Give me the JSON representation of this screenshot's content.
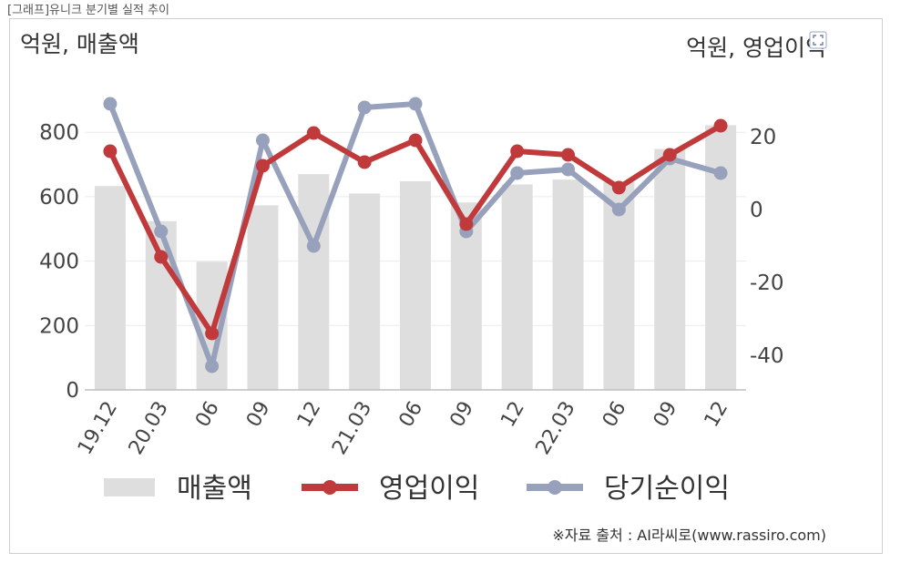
{
  "caption": "[그래프]유니크 분기별 실적 추이",
  "source_note": "※자료 출처 : AI라씨로(www.rassiro.com)",
  "colors": {
    "revenue": "#dedede",
    "operating": "#c0393b",
    "net": "#97a1bb"
  },
  "chart_data": {
    "type": "bar",
    "title": "",
    "left_unit": "억원, 매출액",
    "right_unit": "억원, 영업이익",
    "categories": [
      "19.12",
      "20.03",
      "06",
      "09",
      "12",
      "21.03",
      "06",
      "09",
      "12",
      "22.03",
      "06",
      "09",
      "12"
    ],
    "y_left": {
      "min": 0,
      "max": 900,
      "ticks": [
        0,
        200,
        400,
        600,
        800
      ],
      "tick_labels": [
        "0",
        "200",
        "400",
        "600",
        "800"
      ]
    },
    "y_right": {
      "min": -50,
      "max": 35,
      "ticks": [
        -40,
        -20,
        0,
        20
      ],
      "tick_labels": [
        "-40",
        "-20",
        "0",
        "20"
      ]
    },
    "series": [
      {
        "name": "매출액",
        "type": "bar",
        "axis": "left",
        "values": [
          633,
          524,
          398,
          573,
          670,
          610,
          648,
          582,
          638,
          653,
          645,
          748,
          822
        ]
      },
      {
        "name": "영업이익",
        "type": "line",
        "axis": "right",
        "values": [
          16,
          -13,
          -34,
          12,
          21,
          13,
          19,
          -4,
          16,
          15,
          6,
          15,
          23
        ]
      },
      {
        "name": "당기순이익",
        "type": "line",
        "axis": "right",
        "values": [
          29,
          -6,
          -43,
          19,
          -10,
          28,
          29,
          -6,
          10,
          11,
          0,
          14,
          10
        ]
      }
    ],
    "legend_position": "bottom"
  }
}
